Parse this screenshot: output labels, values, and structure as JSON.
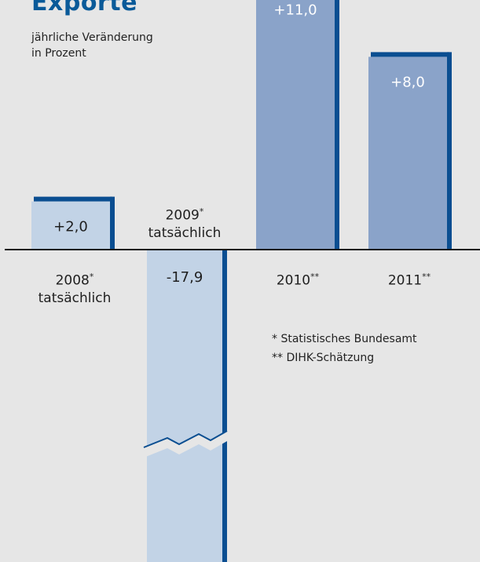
{
  "chart_data": {
    "type": "bar",
    "title": "Exporte",
    "subtitle": [
      "jährliche Veränderung",
      "in Prozent"
    ],
    "categories": [
      "2008",
      "2009",
      "2010",
      "2011"
    ],
    "category_markers": [
      "*",
      "*",
      "**",
      "**"
    ],
    "category_notes": [
      "tatsächlich",
      "tatsächlich",
      "",
      ""
    ],
    "values": [
      2.0,
      -17.9,
      11.0,
      8.0
    ],
    "value_labels": [
      "+2,0",
      "-17,9",
      "+11,0",
      "+8,0"
    ],
    "axis_break": "negative bar truncated",
    "colors": {
      "historic": "#c2d3e6",
      "forecast": "#8aa3c9",
      "edge": "#0a4e91",
      "background": "#e6e6e6"
    },
    "footnotes": [
      "*  Statistisches Bundesamt",
      "** DIHK-Schätzung"
    ]
  }
}
